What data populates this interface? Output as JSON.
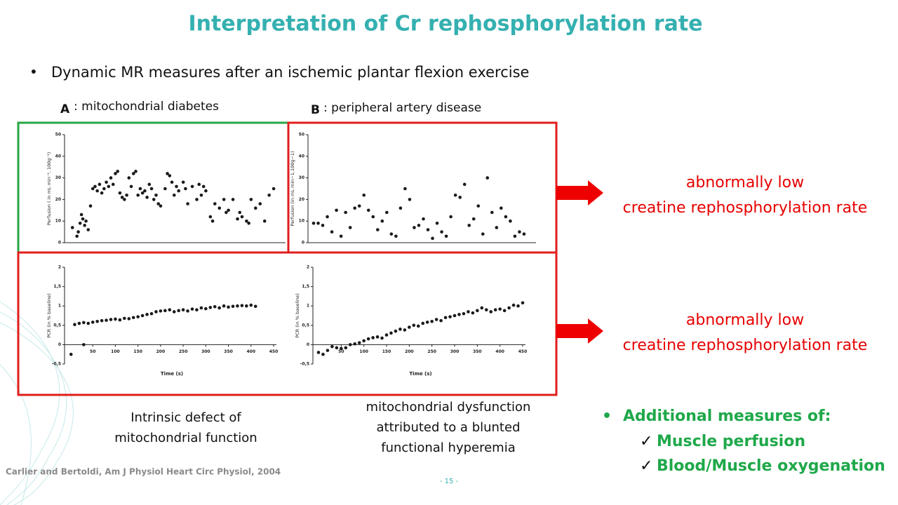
{
  "title": "Interpretation of Cr rephosphorylation rate",
  "bullet": "Dynamic MR measures after an ischemic plantar flexion exercise",
  "panel_a": {
    "letter": "A",
    "label": ": mitochondrial diabetes"
  },
  "panel_b": {
    "letter": "B",
    "label": ": peripheral artery disease"
  },
  "findings": [
    {
      "line1": "abnormally low",
      "line2": "creatine rephosphorylation rate"
    },
    {
      "line1": "abnormally low",
      "line2": "creatine rephosphorylation rate"
    }
  ],
  "captions": [
    {
      "lines": [
        "Intrinsic defect of",
        "mitochondrial function"
      ]
    },
    {
      "lines": [
        "mitochondrial dysfunction",
        "attributed to a blunted",
        "functional hyperemia"
      ]
    }
  ],
  "additional": {
    "heading": "Additional measures of:",
    "items": [
      "Muscle perfusion",
      "Blood/Muscle oxygenation"
    ]
  },
  "citation": "Carlier and Bertoldi, Am J Physiol Heart Circ Physiol, 2004",
  "page_number": "- 15 -",
  "chart_data": [
    {
      "type": "scatter",
      "y_label": "Perfusion ( in mL min⁻¹, 100g⁻¹)",
      "color": "#1a1a1a",
      "xlim": [
        0,
        470
      ],
      "ylim": [
        0,
        50
      ],
      "yticks": [
        0,
        10,
        20,
        30,
        40,
        50
      ],
      "x": [
        5,
        15,
        18,
        22,
        25,
        28,
        32,
        35,
        40,
        45,
        50,
        55,
        60,
        65,
        70,
        75,
        80,
        85,
        90,
        95,
        100,
        105,
        110,
        115,
        120,
        125,
        130,
        135,
        140,
        145,
        150,
        155,
        160,
        165,
        170,
        175,
        180,
        185,
        190,
        195,
        200,
        210,
        215,
        220,
        225,
        230,
        235,
        240,
        250,
        255,
        260,
        270,
        280,
        285,
        290,
        295,
        300,
        310,
        315,
        320,
        330,
        340,
        345,
        350,
        360,
        370,
        375,
        380,
        390,
        395,
        400,
        410,
        420,
        430,
        440,
        450
      ],
      "y": [
        7,
        3,
        5,
        9,
        13,
        11,
        8,
        10,
        6,
        17,
        25,
        26,
        24,
        27,
        23,
        25,
        28,
        26,
        30,
        27,
        32,
        33,
        23,
        21,
        20,
        22,
        30,
        26,
        32,
        33,
        22,
        25,
        23,
        24,
        21,
        27,
        25,
        20,
        22,
        18,
        17,
        25,
        32,
        31,
        28,
        22,
        26,
        24,
        28,
        25,
        18,
        26,
        20,
        27,
        22,
        26,
        24,
        12,
        10,
        18,
        16,
        20,
        14,
        15,
        20,
        11,
        14,
        12,
        10,
        9,
        20,
        16,
        18,
        10,
        22,
        25
      ]
    },
    {
      "type": "scatter",
      "y_label": "Perfusion (in mL min−1,100g−1)",
      "color": "#1a1a1a",
      "xlim": [
        0,
        480
      ],
      "ylim": [
        0,
        50
      ],
      "yticks": [
        0,
        10,
        20,
        30,
        40,
        50
      ],
      "x": [
        0,
        10,
        20,
        30,
        40,
        50,
        60,
        70,
        80,
        90,
        100,
        110,
        120,
        130,
        140,
        150,
        160,
        170,
        180,
        190,
        200,
        210,
        220,
        230,
        240,
        250,
        260,
        270,
        280,
        290,
        300,
        310,
        320,
        330,
        340,
        350,
        360,
        370,
        380,
        390,
        400,
        410,
        420,
        430,
        440,
        450,
        460
      ],
      "y": [
        9,
        9,
        8,
        12,
        5,
        15,
        3,
        14,
        7,
        16,
        17,
        22,
        15,
        12,
        6,
        10,
        14,
        4,
        3,
        16,
        25,
        20,
        7,
        8,
        11,
        6,
        2,
        9,
        5,
        3,
        12,
        22,
        21,
        27,
        8,
        11,
        17,
        4,
        30,
        14,
        7,
        16,
        12,
        10,
        3,
        5,
        4
      ]
    },
    {
      "type": "scatter",
      "y_label": "PCR (in % baseline)",
      "x_label": "Time (s)",
      "color": "#1a1a1a",
      "xlim": [
        0,
        450
      ],
      "ylim": [
        -0.5,
        2
      ],
      "xticks": [
        50,
        100,
        150,
        200,
        250,
        300,
        350,
        400,
        450
      ],
      "yticks": [
        {
          "value": -0.5,
          "label": "-0,5"
        },
        0,
        {
          "value": 0.5,
          "label": "0,5"
        },
        1,
        {
          "value": 1.5,
          "label": "1,5"
        },
        2
      ],
      "x": [
        2,
        30,
        10,
        20,
        30,
        40,
        50,
        60,
        70,
        80,
        90,
        100,
        110,
        120,
        130,
        140,
        150,
        160,
        170,
        180,
        190,
        200,
        210,
        220,
        230,
        240,
        250,
        260,
        270,
        280,
        290,
        300,
        310,
        320,
        330,
        340,
        350,
        360,
        370,
        380,
        390,
        400,
        410
      ],
      "y": [
        -0.25,
        0,
        0.52,
        0.55,
        0.57,
        0.55,
        0.58,
        0.6,
        0.62,
        0.63,
        0.65,
        0.66,
        0.64,
        0.68,
        0.67,
        0.7,
        0.72,
        0.75,
        0.78,
        0.8,
        0.85,
        0.87,
        0.88,
        0.9,
        0.85,
        0.88,
        0.9,
        0.87,
        0.92,
        0.9,
        0.95,
        0.93,
        0.96,
        0.98,
        0.95,
        1.0,
        0.97,
        0.99,
        1.0,
        1.01,
        1.0,
        1.02,
        0.99
      ]
    },
    {
      "type": "scatter",
      "y_label": "PCR (in % baseline)",
      "x_label": "Time (s)",
      "color": "#1a1a1a",
      "xlim": [
        0,
        450
      ],
      "ylim": [
        -0.5,
        2
      ],
      "xticks": [
        50,
        100,
        150,
        200,
        250,
        300,
        350,
        400,
        450
      ],
      "yticks": [
        {
          "value": -0.5,
          "label": "-0,5"
        },
        0,
        {
          "value": 0.5,
          "label": "0,5"
        },
        1,
        {
          "value": 1.5,
          "label": "1,5"
        },
        2
      ],
      "x": [
        0,
        10,
        20,
        30,
        40,
        50,
        60,
        70,
        80,
        90,
        100,
        110,
        120,
        130,
        140,
        150,
        160,
        170,
        180,
        190,
        200,
        210,
        220,
        230,
        240,
        250,
        260,
        270,
        280,
        290,
        300,
        310,
        320,
        330,
        340,
        350,
        360,
        370,
        380,
        390,
        400,
        410,
        420,
        430,
        440,
        450
      ],
      "y": [
        -0.2,
        -0.25,
        -0.15,
        -0.05,
        -0.08,
        -0.1,
        -0.08,
        0,
        0.02,
        0.05,
        0.1,
        0.15,
        0.18,
        0.2,
        0.17,
        0.25,
        0.3,
        0.35,
        0.4,
        0.38,
        0.45,
        0.5,
        0.48,
        0.55,
        0.58,
        0.6,
        0.65,
        0.62,
        0.7,
        0.72,
        0.75,
        0.78,
        0.8,
        0.85,
        0.82,
        0.88,
        0.95,
        0.9,
        0.85,
        0.9,
        0.92,
        0.88,
        0.95,
        1.02,
        1.0,
        1.08
      ]
    }
  ]
}
